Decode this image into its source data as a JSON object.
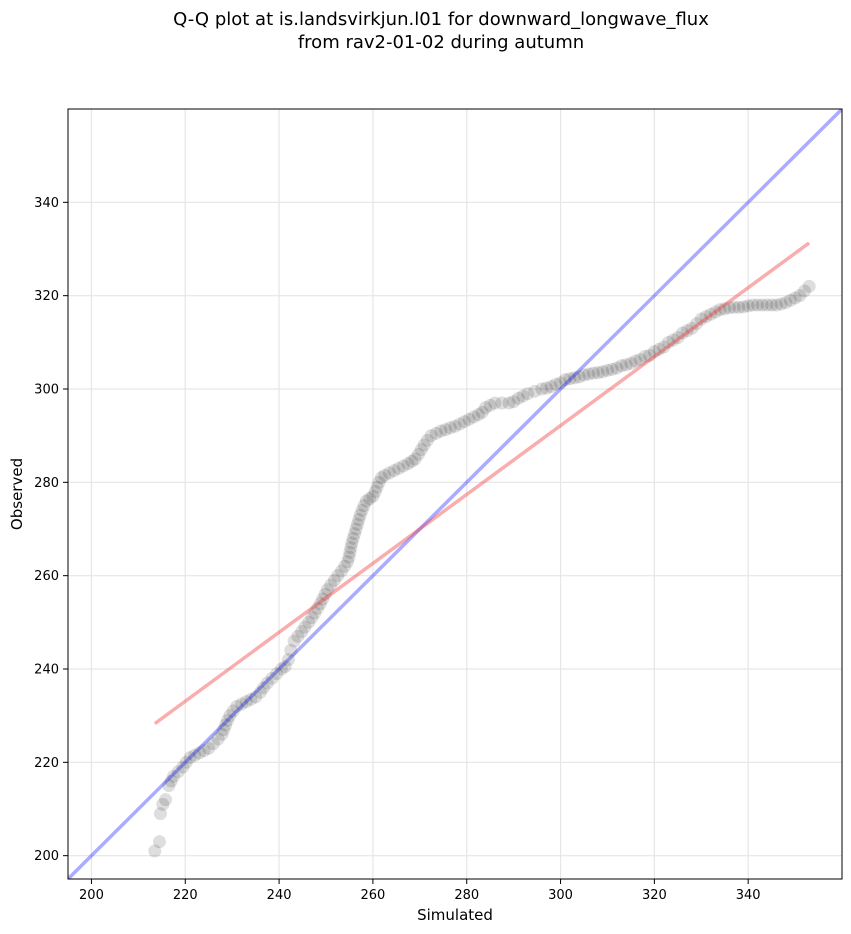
{
  "chart_data": {
    "type": "scatter",
    "title": "Q-Q plot at is.landsvirkjun.l01 for downward_longwave_flux",
    "subtitle": "from rav2-01-02 during autumn",
    "xlabel": "Simulated",
    "ylabel": "Observed",
    "xlim": [
      195,
      360
    ],
    "ylim": [
      195,
      360
    ],
    "xticks": [
      200,
      220,
      240,
      260,
      280,
      300,
      320,
      340
    ],
    "yticks": [
      200,
      220,
      240,
      260,
      280,
      300,
      320,
      340
    ],
    "grid": true,
    "point_color": "#000000",
    "reference_line": {
      "x": [
        195,
        360
      ],
      "y": [
        195,
        360
      ],
      "color": "#0000ff"
    },
    "fit_line": {
      "x": [
        213.5,
        353
      ],
      "y": [
        228.3,
        331.3
      ],
      "color": "#f03c3c"
    },
    "points": [
      [
        213.5,
        201
      ],
      [
        214.5,
        203
      ],
      [
        214.7,
        209
      ],
      [
        215.2,
        211
      ],
      [
        215.8,
        212
      ],
      [
        216.5,
        215
      ],
      [
        217,
        216
      ],
      [
        217.5,
        217
      ],
      [
        218.5,
        218
      ],
      [
        219.5,
        219
      ],
      [
        220.2,
        220
      ],
      [
        221,
        221
      ],
      [
        222,
        221.5
      ],
      [
        223,
        222
      ],
      [
        224,
        222.5
      ],
      [
        225,
        223
      ],
      [
        226,
        224
      ],
      [
        227,
        225
      ],
      [
        227.8,
        226
      ],
      [
        228.2,
        227
      ],
      [
        228.6,
        228
      ],
      [
        229,
        229
      ],
      [
        229.5,
        230
      ],
      [
        230.2,
        231
      ],
      [
        231,
        232
      ],
      [
        232,
        232.5
      ],
      [
        233,
        233
      ],
      [
        234,
        233.5
      ],
      [
        235,
        234
      ],
      [
        236,
        235
      ],
      [
        236.7,
        236
      ],
      [
        237.5,
        237
      ],
      [
        238.5,
        238
      ],
      [
        239.5,
        239
      ],
      [
        240.5,
        240
      ],
      [
        241.3,
        240.5
      ],
      [
        242,
        242
      ],
      [
        242.5,
        244
      ],
      [
        243.2,
        246
      ],
      [
        244,
        247
      ],
      [
        244.8,
        248
      ],
      [
        245.5,
        249
      ],
      [
        246.3,
        250
      ],
      [
        247,
        251
      ],
      [
        247.6,
        252
      ],
      [
        248.2,
        253
      ],
      [
        248.8,
        254
      ],
      [
        249.3,
        255
      ],
      [
        249.8,
        256
      ],
      [
        250.3,
        257
      ],
      [
        251,
        258
      ],
      [
        251.8,
        259
      ],
      [
        252.5,
        260
      ],
      [
        253.3,
        261
      ],
      [
        254,
        262
      ],
      [
        254.6,
        263
      ],
      [
        254.9,
        264
      ],
      [
        255.1,
        265
      ],
      [
        255.3,
        266
      ],
      [
        255.5,
        267
      ],
      [
        255.8,
        268
      ],
      [
        256.1,
        269
      ],
      [
        256.4,
        270
      ],
      [
        256.7,
        271
      ],
      [
        257,
        272
      ],
      [
        257.3,
        273
      ],
      [
        257.7,
        274
      ],
      [
        258.1,
        275
      ],
      [
        258.6,
        276
      ],
      [
        259.3,
        276.5
      ],
      [
        260,
        277
      ],
      [
        260.5,
        278
      ],
      [
        260.9,
        279
      ],
      [
        261.3,
        280
      ],
      [
        261.8,
        281
      ],
      [
        262.5,
        281.5
      ],
      [
        263.5,
        282
      ],
      [
        264.5,
        282.5
      ],
      [
        265.5,
        283
      ],
      [
        266.5,
        283.5
      ],
      [
        267.5,
        284
      ],
      [
        268.3,
        284.5
      ],
      [
        269,
        285
      ],
      [
        269.7,
        286
      ],
      [
        270.3,
        287
      ],
      [
        270.9,
        288
      ],
      [
        271.6,
        289
      ],
      [
        272.4,
        290
      ],
      [
        273.5,
        290.5
      ],
      [
        274.5,
        291
      ],
      [
        275.5,
        291.3
      ],
      [
        276.5,
        291.7
      ],
      [
        277.5,
        292
      ],
      [
        278.5,
        292.5
      ],
      [
        279.5,
        293
      ],
      [
        280.5,
        293.5
      ],
      [
        281.5,
        294
      ],
      [
        282.5,
        294.5
      ],
      [
        283.3,
        295
      ],
      [
        284,
        296
      ],
      [
        285,
        296.5
      ],
      [
        286,
        297
      ],
      [
        287.5,
        297
      ],
      [
        289,
        297
      ],
      [
        290,
        297.3
      ],
      [
        291,
        298
      ],
      [
        292,
        298.5
      ],
      [
        293,
        299
      ],
      [
        294.5,
        299.5
      ],
      [
        296,
        300
      ],
      [
        297,
        300.2
      ],
      [
        298,
        300.5
      ],
      [
        299,
        301
      ],
      [
        300,
        301.3
      ],
      [
        301,
        302
      ],
      [
        302,
        302.2
      ],
      [
        303,
        302.4
      ],
      [
        304,
        302.6
      ],
      [
        305,
        303
      ],
      [
        306,
        303.2
      ],
      [
        307,
        303.4
      ],
      [
        308,
        303.5
      ],
      [
        309,
        303.7
      ],
      [
        310,
        304
      ],
      [
        311,
        304.2
      ],
      [
        312,
        304.5
      ],
      [
        313,
        305
      ],
      [
        314,
        305.2
      ],
      [
        315,
        305.5
      ],
      [
        316,
        306
      ],
      [
        317,
        306.3
      ],
      [
        318,
        307
      ],
      [
        319,
        307.2
      ],
      [
        320,
        308
      ],
      [
        321,
        308.5
      ],
      [
        322,
        309
      ],
      [
        323,
        310
      ],
      [
        324,
        310.5
      ],
      [
        325,
        311
      ],
      [
        326,
        312
      ],
      [
        327,
        312.5
      ],
      [
        328,
        313
      ],
      [
        329,
        314
      ],
      [
        330,
        315
      ],
      [
        331,
        315.5
      ],
      [
        332,
        316
      ],
      [
        333,
        316.5
      ],
      [
        334,
        317
      ],
      [
        335,
        317.2
      ],
      [
        336,
        317.4
      ],
      [
        337,
        317.5
      ],
      [
        338,
        317.5
      ],
      [
        339,
        317.6
      ],
      [
        340,
        317.8
      ],
      [
        341,
        318
      ],
      [
        342,
        318
      ],
      [
        343,
        318
      ],
      [
        344,
        318
      ],
      [
        345,
        318
      ],
      [
        346,
        318
      ],
      [
        347,
        318.2
      ],
      [
        348,
        318.5
      ],
      [
        349,
        319
      ],
      [
        350,
        319.5
      ],
      [
        351,
        320
      ],
      [
        352,
        321
      ],
      [
        353,
        322
      ]
    ]
  }
}
